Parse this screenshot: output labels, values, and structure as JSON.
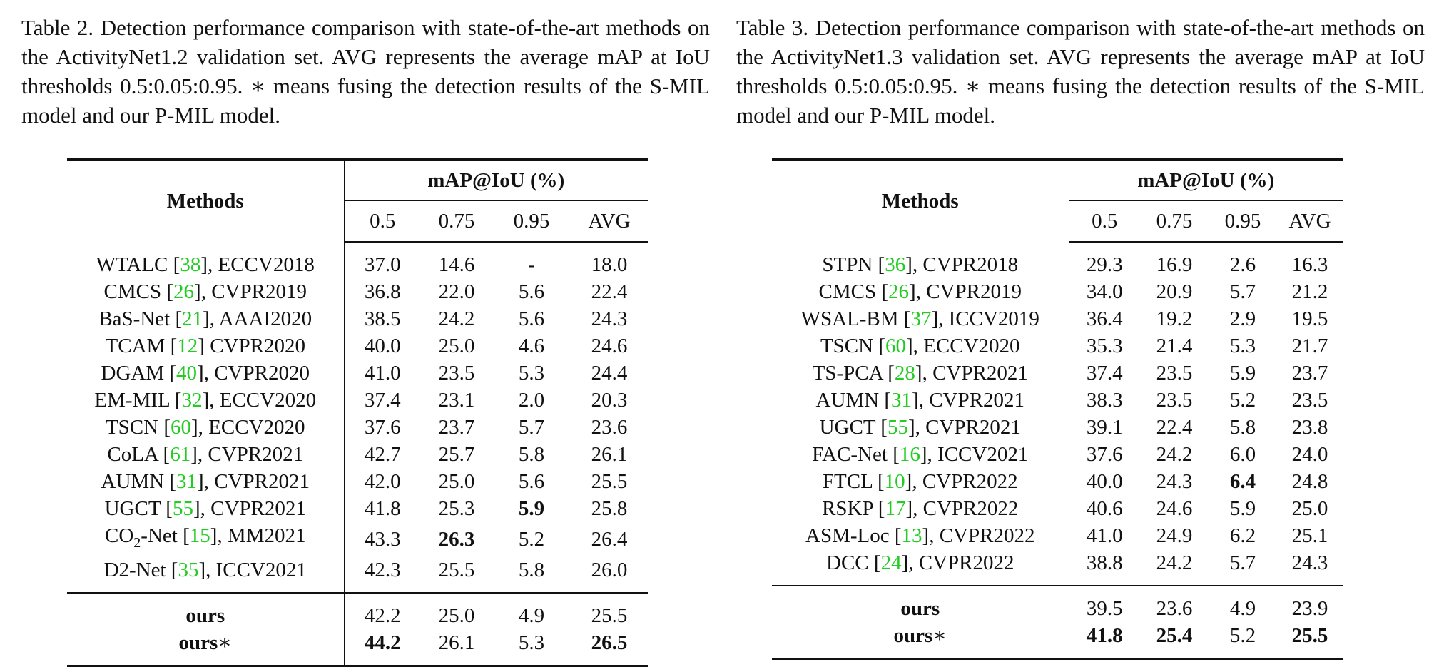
{
  "tables": [
    {
      "caption": "Table 2.  Detection performance comparison with state-of-the-art methods on the ActivityNet1.2 validation set. AVG represents the average mAP at IoU thresholds 0.5:0.05:0.95. ∗ means fusing the detection results of the S-MIL model and our P-MIL model.",
      "methods_header": "Methods",
      "group_header": "mAP@IoU (%)",
      "columns": [
        "0.5",
        "0.75",
        "0.95",
        "AVG"
      ],
      "rows": [
        {
          "name": "WTALC",
          "ref": "38",
          "sep": "], ",
          "venue": "ECCV2018",
          "values": [
            "37.0",
            "14.6",
            "-",
            "18.0"
          ],
          "bold": [
            false,
            false,
            false,
            false
          ]
        },
        {
          "name": "CMCS",
          "ref": "26",
          "sep": "], ",
          "venue": "CVPR2019",
          "values": [
            "36.8",
            "22.0",
            "5.6",
            "22.4"
          ],
          "bold": [
            false,
            false,
            false,
            false
          ]
        },
        {
          "name": "BaS-Net",
          "ref": "21",
          "sep": "], ",
          "venue": "AAAI2020",
          "values": [
            "38.5",
            "24.2",
            "5.6",
            "24.3"
          ],
          "bold": [
            false,
            false,
            false,
            false
          ]
        },
        {
          "name": "TCAM",
          "ref": "12",
          "sep": "] ",
          "venue": "CVPR2020",
          "values": [
            "40.0",
            "25.0",
            "4.6",
            "24.6"
          ],
          "bold": [
            false,
            false,
            false,
            false
          ]
        },
        {
          "name": "DGAM",
          "ref": "40",
          "sep": "], ",
          "venue": "CVPR2020",
          "values": [
            "41.0",
            "23.5",
            "5.3",
            "24.4"
          ],
          "bold": [
            false,
            false,
            false,
            false
          ]
        },
        {
          "name": "EM-MIL",
          "ref": "32",
          "sep": "], ",
          "venue": "ECCV2020",
          "values": [
            "37.4",
            "23.1",
            "2.0",
            "20.3"
          ],
          "bold": [
            false,
            false,
            false,
            false
          ]
        },
        {
          "name": "TSCN",
          "ref": "60",
          "sep": "], ",
          "venue": "ECCV2020",
          "values": [
            "37.6",
            "23.7",
            "5.7",
            "23.6"
          ],
          "bold": [
            false,
            false,
            false,
            false
          ]
        },
        {
          "name": "CoLA",
          "ref": "61",
          "sep": "], ",
          "venue": "CVPR2021",
          "values": [
            "42.7",
            "25.7",
            "5.8",
            "26.1"
          ],
          "bold": [
            false,
            false,
            false,
            false
          ]
        },
        {
          "name": "AUMN",
          "ref": "31",
          "sep": "], ",
          "venue": "CVPR2021",
          "values": [
            "42.0",
            "25.0",
            "5.6",
            "25.5"
          ],
          "bold": [
            false,
            false,
            false,
            false
          ]
        },
        {
          "name": "UGCT",
          "ref": "55",
          "sep": "], ",
          "venue": "CVPR2021",
          "values": [
            "41.8",
            "25.3",
            "5.9",
            "25.8"
          ],
          "bold": [
            false,
            false,
            true,
            false
          ]
        },
        {
          "name": "CO",
          "name_sub": "2",
          "name_suffix": "-Net",
          "ref": "15",
          "sep": "], ",
          "venue": "MM2021",
          "values": [
            "43.3",
            "26.3",
            "5.2",
            "26.4"
          ],
          "bold": [
            false,
            true,
            false,
            false
          ]
        },
        {
          "name": "D2-Net",
          "ref": "35",
          "sep": "], ",
          "venue": "ICCV2021",
          "values": [
            "42.3",
            "25.5",
            "5.8",
            "26.0"
          ],
          "bold": [
            false,
            false,
            false,
            false
          ]
        }
      ],
      "ours_rows": [
        {
          "name": "ours",
          "mark": "",
          "values": [
            "42.2",
            "25.0",
            "4.9",
            "25.5"
          ],
          "bold": [
            false,
            false,
            false,
            false
          ]
        },
        {
          "name": "ours",
          "mark": "∗",
          "values": [
            "44.2",
            "26.1",
            "5.3",
            "26.5"
          ],
          "bold": [
            true,
            false,
            false,
            true
          ]
        }
      ]
    },
    {
      "caption": "Table 3.  Detection performance comparison with state-of-the-art methods on the ActivityNet1.3 validation set. AVG represents the average mAP at IoU thresholds 0.5:0.05:0.95. ∗ means fusing the detection results of the S-MIL model and our P-MIL model.",
      "methods_header": "Methods",
      "group_header": "mAP@IoU (%)",
      "columns": [
        "0.5",
        "0.75",
        "0.95",
        "AVG"
      ],
      "rows": [
        {
          "name": "STPN",
          "ref": "36",
          "sep": "], ",
          "venue": "CVPR2018",
          "values": [
            "29.3",
            "16.9",
            "2.6",
            "16.3"
          ],
          "bold": [
            false,
            false,
            false,
            false
          ]
        },
        {
          "name": "CMCS",
          "ref": "26",
          "sep": "], ",
          "venue": "CVPR2019",
          "values": [
            "34.0",
            "20.9",
            "5.7",
            "21.2"
          ],
          "bold": [
            false,
            false,
            false,
            false
          ]
        },
        {
          "name": "WSAL-BM",
          "ref": "37",
          "sep": "], ",
          "venue": "ICCV2019",
          "values": [
            "36.4",
            "19.2",
            "2.9",
            "19.5"
          ],
          "bold": [
            false,
            false,
            false,
            false
          ]
        },
        {
          "name": "TSCN",
          "ref": "60",
          "sep": "], ",
          "venue": "ECCV2020",
          "values": [
            "35.3",
            "21.4",
            "5.3",
            "21.7"
          ],
          "bold": [
            false,
            false,
            false,
            false
          ]
        },
        {
          "name": "TS-PCA",
          "ref": "28",
          "sep": "], ",
          "venue": "CVPR2021",
          "values": [
            "37.4",
            "23.5",
            "5.9",
            "23.7"
          ],
          "bold": [
            false,
            false,
            false,
            false
          ]
        },
        {
          "name": "AUMN",
          "ref": "31",
          "sep": "], ",
          "venue": "CVPR2021",
          "values": [
            "38.3",
            "23.5",
            "5.2",
            "23.5"
          ],
          "bold": [
            false,
            false,
            false,
            false
          ]
        },
        {
          "name": "UGCT",
          "ref": "55",
          "sep": "], ",
          "venue": "CVPR2021",
          "values": [
            "39.1",
            "22.4",
            "5.8",
            "23.8"
          ],
          "bold": [
            false,
            false,
            false,
            false
          ]
        },
        {
          "name": "FAC-Net",
          "ref": "16",
          "sep": "], ",
          "venue": "ICCV2021",
          "values": [
            "37.6",
            "24.2",
            "6.0",
            "24.0"
          ],
          "bold": [
            false,
            false,
            false,
            false
          ]
        },
        {
          "name": "FTCL",
          "ref": "10",
          "sep": "], ",
          "venue": "CVPR2022",
          "values": [
            "40.0",
            "24.3",
            "6.4",
            "24.8"
          ],
          "bold": [
            false,
            false,
            true,
            false
          ]
        },
        {
          "name": "RSKP",
          "ref": "17",
          "sep": "], ",
          "venue": "CVPR2022",
          "values": [
            "40.6",
            "24.6",
            "5.9",
            "25.0"
          ],
          "bold": [
            false,
            false,
            false,
            false
          ]
        },
        {
          "name": "ASM-Loc",
          "ref": "13",
          "sep": "], ",
          "venue": "CVPR2022",
          "values": [
            "41.0",
            "24.9",
            "6.2",
            "25.1"
          ],
          "bold": [
            false,
            false,
            false,
            false
          ]
        },
        {
          "name": "DCC",
          "ref": "24",
          "sep": "], ",
          "venue": "CVPR2022",
          "values": [
            "38.8",
            "24.2",
            "5.7",
            "24.3"
          ],
          "bold": [
            false,
            false,
            false,
            false
          ]
        }
      ],
      "ours_rows": [
        {
          "name": "ours",
          "mark": "",
          "values": [
            "39.5",
            "23.6",
            "4.9",
            "23.9"
          ],
          "bold": [
            false,
            false,
            false,
            false
          ]
        },
        {
          "name": "ours",
          "mark": "∗",
          "values": [
            "41.8",
            "25.4",
            "5.2",
            "25.5"
          ],
          "bold": [
            true,
            true,
            false,
            true
          ]
        }
      ]
    }
  ]
}
